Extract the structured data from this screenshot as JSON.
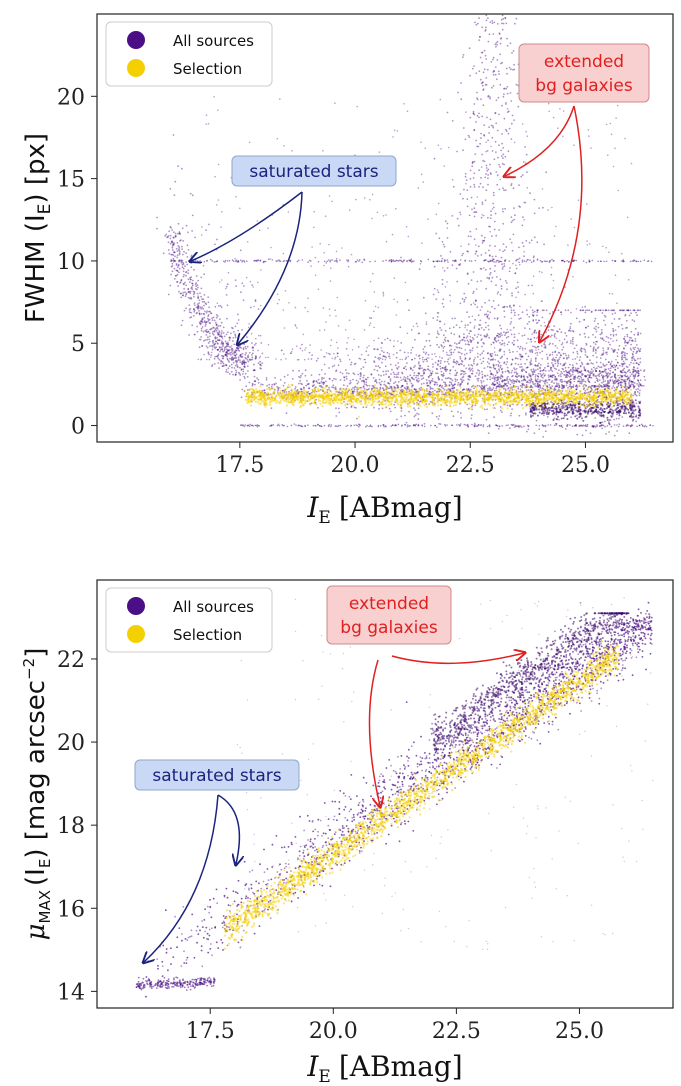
{
  "colors": {
    "all_sources": "#4b0f85",
    "selection": "#f5d000",
    "blue_box_fill": "#c9d9f5",
    "blue_box_stroke": "#8ea6cc",
    "blue_text": "#1a237e",
    "red_box_fill": "#f8d0d0",
    "red_box_stroke": "#d08a8a",
    "red_text": "#e02020"
  },
  "chart_data": [
    {
      "type": "scatter",
      "xlabel_main": "I",
      "xlabel_sub": "E",
      "xlabel_unit": "[ABmag]",
      "ylabel_main": "FWHM (I",
      "ylabel_sub": "E",
      "ylabel_tail": ") [px]",
      "xlim": [
        14.4,
        26.9
      ],
      "ylim": [
        -1,
        25
      ],
      "xticks": [
        17.5,
        20.0,
        22.5,
        25.0
      ],
      "xtick_labels": [
        "17.5",
        "20.0",
        "22.5",
        "25.0"
      ],
      "yticks": [
        0,
        5,
        10,
        15,
        20
      ],
      "ytick_labels": [
        "0",
        "5",
        "10",
        "15",
        "20"
      ],
      "legend": [
        "All sources",
        "Selection"
      ],
      "legend_position": "top-left",
      "series": [
        {
          "name": "All sources",
          "regions": [
            {
              "label": "saturated stars curve",
              "x": [
                16.0,
                17.5
              ],
              "y": [
                3.5,
                13.5
              ]
            },
            {
              "label": "main locus",
              "x": [
                17.5,
                26.2
              ],
              "y": [
                0.5,
                6.0
              ]
            },
            {
              "label": "extended plume",
              "x": [
                21.5,
                24.0
              ],
              "y": [
                5.0,
                25.0
              ]
            },
            {
              "label": "saturation ceiling line",
              "x": [
                16.0,
                26.5
              ],
              "y": [
                10.0,
                10.0
              ]
            },
            {
              "label": "zero line",
              "x": [
                17.5,
                26.5
              ],
              "y": [
                0.0,
                0.0
              ]
            }
          ]
        },
        {
          "name": "Selection",
          "regions": [
            {
              "label": "point source band",
              "x": [
                17.6,
                26.0
              ],
              "y": [
                1.3,
                2.3
              ]
            }
          ]
        }
      ],
      "annotations": {
        "saturated": "saturated stars",
        "extended_line1": "extended",
        "extended_line2": "bg galaxies"
      }
    },
    {
      "type": "scatter",
      "xlabel_main": "I",
      "xlabel_sub": "E",
      "xlabel_unit": "[ABmag]",
      "ylabel_mu": "μ",
      "ylabel_sub": "MAX",
      "ylabel_mid": "(I",
      "ylabel_sub2": "E",
      "ylabel_tail": ") [mag arcsec",
      "ylabel_sup": "−2",
      "ylabel_close": "]",
      "xlim": [
        15.2,
        26.9
      ],
      "ylim": [
        13.6,
        23.9
      ],
      "xticks": [
        17.5,
        20.0,
        22.5,
        25.0
      ],
      "xtick_labels": [
        "17.5",
        "20.0",
        "22.5",
        "25.0"
      ],
      "yticks": [
        14,
        16,
        18,
        20,
        22
      ],
      "ytick_labels": [
        "14",
        "16",
        "18",
        "20",
        "22"
      ],
      "legend": [
        "All sources",
        "Selection"
      ],
      "legend_position": "top-left",
      "series": [
        {
          "name": "All sources",
          "regions": [
            {
              "label": "main band",
              "x": [
                16.0,
                26.5
              ],
              "y": [
                14.1,
                23.0
              ]
            }
          ]
        },
        {
          "name": "Selection",
          "regions": [
            {
              "label": "selected band",
              "x": [
                17.8,
                25.8
              ],
              "y": [
                14.6,
                22.6
              ]
            }
          ]
        }
      ],
      "annotations": {
        "saturated": "saturated stars",
        "extended_line1": "extended",
        "extended_line2": "bg galaxies"
      }
    }
  ]
}
